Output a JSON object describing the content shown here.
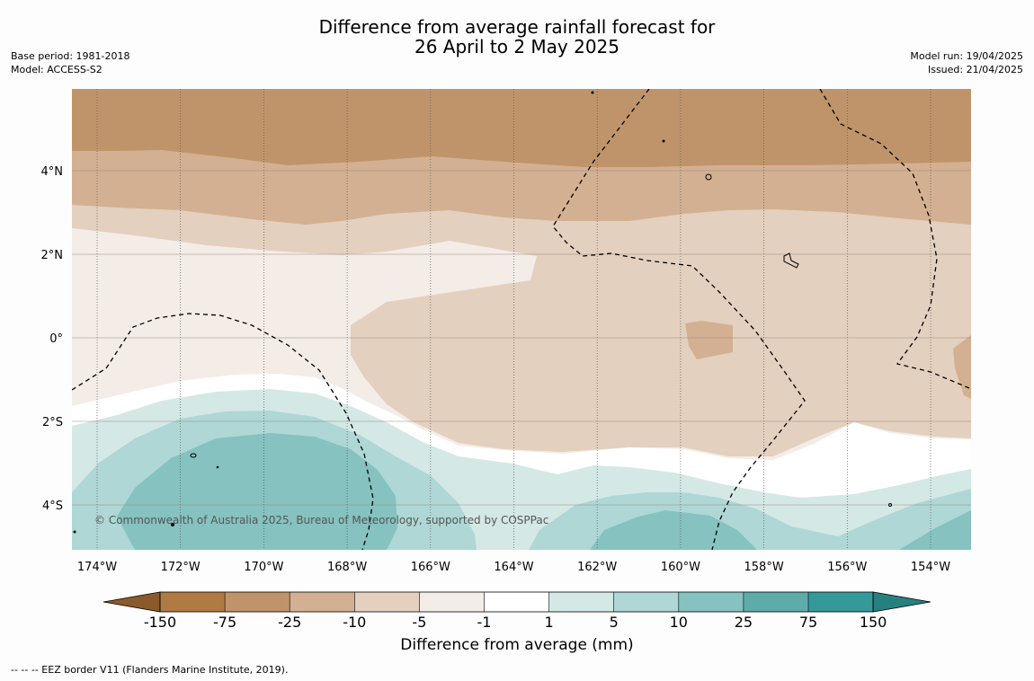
{
  "title": {
    "line1": "Difference from average rainfall forecast for",
    "line2": "26 April to 2 May 2025"
  },
  "meta_left": {
    "base_period": "Base period: 1981-2018",
    "model": "Model: ACCESS-S2"
  },
  "meta_right": {
    "model_run": "Model run: 19/04/2025",
    "issued": "Issued: 21/04/2025"
  },
  "map": {
    "longitude_labels": [
      "174°W",
      "172°W",
      "170°W",
      "168°W",
      "166°W",
      "164°W",
      "162°W",
      "160°W",
      "158°W",
      "156°W",
      "154°W"
    ],
    "latitude_labels": [
      "4°N",
      "2°N",
      "0°",
      "2°S",
      "4°S"
    ],
    "copyright": "© Commonwealth of Australia 2025, Bureau of Meteorology, supported by COSPPac"
  },
  "colorbar": {
    "ticks": [
      "-150",
      "-75",
      "-25",
      "-10",
      "-5",
      "-1",
      "1",
      "5",
      "10",
      "25",
      "75",
      "150"
    ],
    "colors": [
      "#8b5a2b",
      "#b07a45",
      "#c0946a",
      "#d3b092",
      "#e3d0bf",
      "#f4ece7",
      "#ffffff",
      "#d4e8e6",
      "#aed7d5",
      "#85c2c0",
      "#5eacaa",
      "#35999a",
      "#26807f"
    ],
    "label": "Difference from average (mm)"
  },
  "footer": "--  --  -- EEZ border V11 (Flanders Marine Institute, 2019)."
}
